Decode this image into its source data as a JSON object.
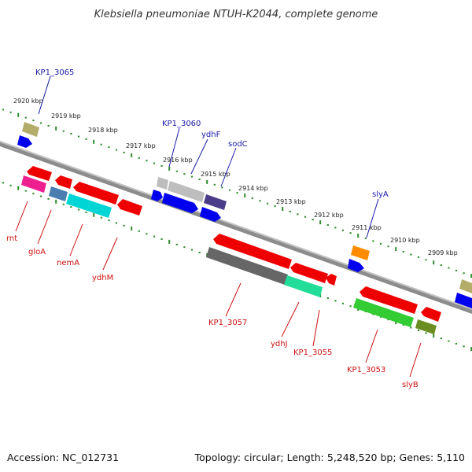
{
  "title": "Klebsiella pneumoniae NTUH-K2044, complete genome",
  "footer": {
    "accession": "Accession: NC_012731",
    "summary": "Topology: circular; Length: 5,248,520 bp; Genes: 5,110"
  },
  "colors": {
    "backbone": "#8c8c8c",
    "tick": "#2e8b2e",
    "forward_label": "#1a1aa8",
    "reverse_label": "#cc1111"
  },
  "ticks": [
    "2920 kbp",
    "2919 kbp",
    "2918 kbp",
    "2917 kbp",
    "2916 kbp",
    "2915 kbp",
    "2914 kbp",
    "2913 kbp",
    "2912 kbp",
    "2911 kbp",
    "2910 kbp",
    "2909 kbp"
  ],
  "forward_labels": [
    "KP1_3065",
    "KP1_3060",
    "ydhF",
    "sodC",
    "slyA"
  ],
  "reverse_labels": [
    "rnt",
    "gloA",
    "nemA",
    "ydhM",
    "KP1_3057",
    "ydhJ",
    "KP1_3055",
    "KP1_3053",
    "slyB"
  ],
  "gene_colors": [
    "#b4ad6a",
    "#0000ee",
    "#ee0000",
    "#ee2090",
    "#4a7db0",
    "#00d5d5",
    "#bdbdbd",
    "#4b3c8a",
    "#666666",
    "#22dd99",
    "#33cc33",
    "#6b8e23",
    "#ff8c00"
  ]
}
